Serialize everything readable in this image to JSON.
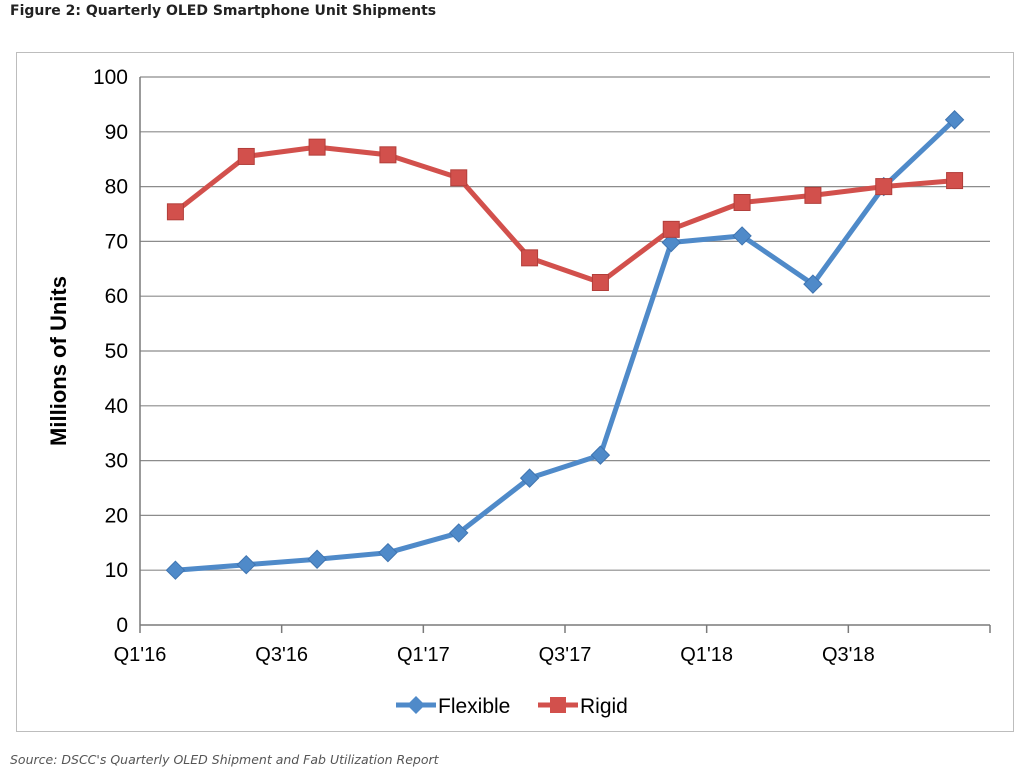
{
  "figure": {
    "title": "Figure 2: Quarterly OLED Smartphone Unit Shipments",
    "source": "Source: DSCC's Quarterly OLED Shipment and Fab Utilization Report"
  },
  "chart_data": {
    "type": "line",
    "title": "",
    "xlabel": "",
    "ylabel": "Millions of Units",
    "ylim": [
      0,
      100
    ],
    "yticks": [
      0,
      10,
      20,
      30,
      40,
      50,
      60,
      70,
      80,
      90,
      100
    ],
    "categories": [
      "Q1'16",
      "Q2'16",
      "Q3'16",
      "Q4'16",
      "Q1'17",
      "Q2'17",
      "Q3'17",
      "Q4'17",
      "Q1'18",
      "Q2'18",
      "Q3'18",
      "Q4'18"
    ],
    "xtick_labels": [
      "Q1'16",
      "",
      "Q3'16",
      "",
      "Q1'17",
      "",
      "Q3'17",
      "",
      "Q1'18",
      "",
      "Q3'18",
      ""
    ],
    "grid": true,
    "legend_position": "bottom",
    "series": [
      {
        "name": "Flexible",
        "color": "#4f8ac9",
        "marker": "diamond",
        "values": [
          10,
          11,
          12,
          13.2,
          16.8,
          26.8,
          31,
          69.8,
          71,
          62.2,
          80,
          92.2
        ]
      },
      {
        "name": "Rigid",
        "color": "#d2504c",
        "marker": "square",
        "values": [
          75.4,
          85.5,
          87.2,
          85.8,
          81.6,
          67,
          62.5,
          72.2,
          77.1,
          78.4,
          80,
          81.1
        ]
      }
    ]
  }
}
